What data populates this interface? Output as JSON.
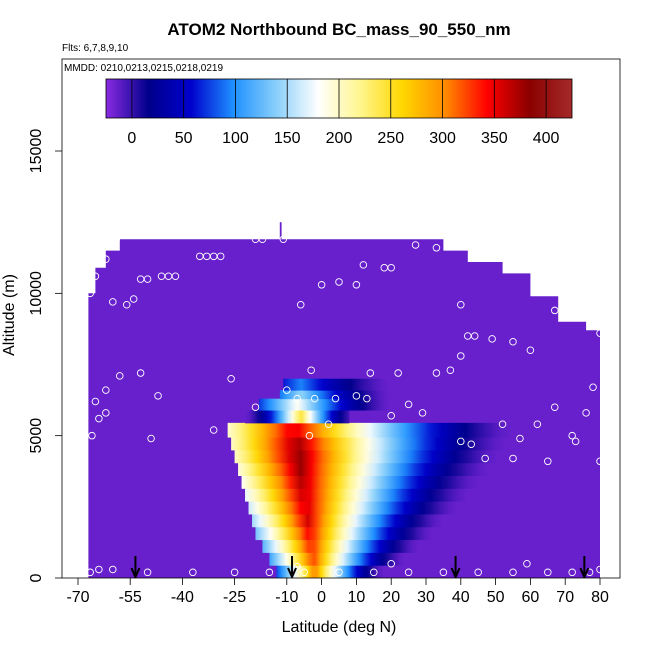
{
  "chart_data": {
    "type": "heatmap",
    "title": "ATOM2 Northbound BC_mass_90_550_nm",
    "notes": [
      "Flts: 6,7,8,9,10",
      "MMDD: 0210,0213,0215,0218,0219"
    ],
    "xlabel": "Latitude (deg N)",
    "ylabel": "Altitude (m)",
    "xlim": [
      -70,
      85
    ],
    "ylim": [
      0,
      17500
    ],
    "x_ticks": [
      -70,
      -55,
      -40,
      -25,
      -10,
      0,
      10,
      20,
      30,
      40,
      50,
      60,
      70,
      80
    ],
    "y_ticks": [
      0,
      5000,
      10000,
      15000
    ],
    "colorbar": {
      "ticks": [
        0,
        50,
        100,
        150,
        200,
        250,
        300,
        350,
        400
      ],
      "range": [
        -25,
        425
      ],
      "colors": [
        "#8a2be2",
        "#00008b",
        "#0000cd",
        "#1e90ff",
        "#87cefa",
        "#ffffff",
        "#fff68f",
        "#ffd700",
        "#ff8c00",
        "#ff0000",
        "#8b0000",
        "#a52a2a"
      ]
    },
    "grid": false,
    "legend": "top",
    "field": {
      "background_value": -15,
      "domain": [
        {
          "x": -67,
          "y": 0
        },
        {
          "x": -67,
          "y": 10000
        },
        {
          "x": -65,
          "y": 10000
        },
        {
          "x": -65,
          "y": 10900
        },
        {
          "x": -62,
          "y": 10900
        },
        {
          "x": -62,
          "y": 11500
        },
        {
          "x": -58,
          "y": 11500
        },
        {
          "x": -58,
          "y": 11900
        },
        {
          "x": 35,
          "y": 11900
        },
        {
          "x": 35,
          "y": 11500
        },
        {
          "x": 42,
          "y": 11500
        },
        {
          "x": 42,
          "y": 11100
        },
        {
          "x": 52,
          "y": 11100
        },
        {
          "x": 52,
          "y": 10700
        },
        {
          "x": 60,
          "y": 10700
        },
        {
          "x": 60,
          "y": 9900
        },
        {
          "x": 68,
          "y": 9900
        },
        {
          "x": 68,
          "y": 9000
        },
        {
          "x": 76,
          "y": 9000
        },
        {
          "x": 76,
          "y": 8700
        },
        {
          "x": 80,
          "y": 8700
        },
        {
          "x": 80,
          "y": 0
        }
      ],
      "top_bump": [
        {
          "x": -12,
          "y": 11900
        },
        {
          "x": -12,
          "y": 12500
        },
        {
          "x": -11.5,
          "y": 12500
        },
        {
          "x": -11.5,
          "y": 11900
        }
      ],
      "plume_layers": [
        {
          "y0": 0,
          "y1": 450,
          "x0": -13,
          "x1": 18,
          "peak": 310,
          "center": -2
        },
        {
          "y0": 450,
          "y1": 900,
          "x0": -15,
          "x1": 24,
          "peak": 330,
          "center": -2.5
        },
        {
          "y0": 900,
          "y1": 1350,
          "x0": -17,
          "x1": 28,
          "peak": 340,
          "center": -3
        },
        {
          "y0": 1350,
          "y1": 1800,
          "x0": -19,
          "x1": 32,
          "peak": 350,
          "center": -3.5
        },
        {
          "y0": 1800,
          "y1": 2250,
          "x0": -20,
          "x1": 35,
          "peak": 360,
          "center": -4
        },
        {
          "y0": 2250,
          "y1": 2700,
          "x0": -21,
          "x1": 39,
          "peak": 365,
          "center": -4.5
        },
        {
          "y0": 2700,
          "y1": 3150,
          "x0": -22,
          "x1": 42,
          "peak": 370,
          "center": -5
        },
        {
          "y0": 3150,
          "y1": 3600,
          "x0": -23,
          "x1": 45,
          "peak": 375,
          "center": -5.5
        },
        {
          "y0": 3600,
          "y1": 4050,
          "x0": -24,
          "x1": 48,
          "peak": 380,
          "center": -6
        },
        {
          "y0": 4050,
          "y1": 4500,
          "x0": -25,
          "x1": 51,
          "peak": 385,
          "center": -6.5
        },
        {
          "y0": 4500,
          "y1": 4950,
          "x0": -26,
          "x1": 53,
          "peak": 380,
          "center": -7
        },
        {
          "y0": 4950,
          "y1": 5450,
          "x0": -27,
          "x1": 55,
          "peak": 360,
          "center": -8
        },
        {
          "y0": 5450,
          "y1": 5900,
          "x0": -22,
          "x1": 8,
          "peak": 250,
          "center": -6
        },
        {
          "y0": 5900,
          "y1": 6300,
          "x0": -18,
          "x1": 20,
          "peak": 185,
          "center": -7
        },
        {
          "y0": 6300,
          "y1": 6600,
          "x0": -12,
          "x1": 20,
          "peak": 145,
          "center": -6
        },
        {
          "y0": 6600,
          "y1": 7000,
          "x0": -11,
          "x1": 20,
          "peak": 95,
          "center": -6
        }
      ]
    },
    "flight_points": [
      {
        "x": -66.5,
        "y": 200
      },
      {
        "x": -64,
        "y": 300
      },
      {
        "x": -60,
        "y": 300
      },
      {
        "x": -50,
        "y": 200
      },
      {
        "x": -37,
        "y": 200
      },
      {
        "x": -25,
        "y": 200
      },
      {
        "x": -15,
        "y": 200
      },
      {
        "x": -5,
        "y": 200
      },
      {
        "x": 5,
        "y": 200
      },
      {
        "x": 15,
        "y": 200
      },
      {
        "x": 25,
        "y": 200
      },
      {
        "x": 35,
        "y": 200
      },
      {
        "x": 45,
        "y": 200
      },
      {
        "x": 55,
        "y": 200
      },
      {
        "x": 65,
        "y": 200
      },
      {
        "x": 72,
        "y": 200
      },
      {
        "x": 77,
        "y": 200
      },
      {
        "x": 80,
        "y": 300
      },
      {
        "x": 59,
        "y": 500
      },
      {
        "x": 20,
        "y": 500
      },
      {
        "x": -7,
        "y": 400
      },
      {
        "x": -66,
        "y": 5000
      },
      {
        "x": -64,
        "y": 5600
      },
      {
        "x": -62,
        "y": 5800
      },
      {
        "x": -65,
        "y": 6200
      },
      {
        "x": -62,
        "y": 6600
      },
      {
        "x": -58,
        "y": 7100
      },
      {
        "x": -52,
        "y": 7200
      },
      {
        "x": -47,
        "y": 6400
      },
      {
        "x": -49,
        "y": 4900
      },
      {
        "x": -31,
        "y": 5200
      },
      {
        "x": -26,
        "y": 7000
      },
      {
        "x": -19,
        "y": 6000
      },
      {
        "x": -10,
        "y": 6600
      },
      {
        "x": -7,
        "y": 6300
      },
      {
        "x": -3.5,
        "y": 5000
      },
      {
        "x": -2,
        "y": 6300
      },
      {
        "x": 2,
        "y": 5400
      },
      {
        "x": 4,
        "y": 6300
      },
      {
        "x": 10,
        "y": 6400
      },
      {
        "x": 13,
        "y": 6300
      },
      {
        "x": 20,
        "y": 5700
      },
      {
        "x": 25,
        "y": 6100
      },
      {
        "x": 29,
        "y": 5800
      },
      {
        "x": 40,
        "y": 4800
      },
      {
        "x": 43,
        "y": 4700
      },
      {
        "x": 47,
        "y": 4200
      },
      {
        "x": 52,
        "y": 5400
      },
      {
        "x": 55,
        "y": 4200
      },
      {
        "x": 57,
        "y": 4900
      },
      {
        "x": 62,
        "y": 5400
      },
      {
        "x": 65,
        "y": 4100
      },
      {
        "x": 67,
        "y": 6000
      },
      {
        "x": 72,
        "y": 5000
      },
      {
        "x": 73,
        "y": 4800
      },
      {
        "x": 76,
        "y": 5800
      },
      {
        "x": 80,
        "y": 4100
      },
      {
        "x": -3,
        "y": 7300
      },
      {
        "x": 14,
        "y": 7200
      },
      {
        "x": 22,
        "y": 7200
      },
      {
        "x": 33,
        "y": 7200
      },
      {
        "x": 37,
        "y": 7300
      },
      {
        "x": 40,
        "y": 7800
      },
      {
        "x": 42,
        "y": 8500
      },
      {
        "x": 44,
        "y": 8500
      },
      {
        "x": 49,
        "y": 8400
      },
      {
        "x": 55,
        "y": 8300
      },
      {
        "x": 60,
        "y": 8000
      },
      {
        "x": 74,
        "y": 9400
      },
      {
        "x": 76,
        "y": 9200
      },
      {
        "x": 78,
        "y": 6700
      },
      {
        "x": 80,
        "y": 8600
      },
      {
        "x": 67,
        "y": 9400
      },
      {
        "x": 40,
        "y": 9600
      },
      {
        "x": -60,
        "y": 9700
      },
      {
        "x": -56,
        "y": 9600
      },
      {
        "x": -54,
        "y": 9800
      },
      {
        "x": -52,
        "y": 10500
      },
      {
        "x": -50,
        "y": 10500
      },
      {
        "x": -46,
        "y": 10600
      },
      {
        "x": -44,
        "y": 10600
      },
      {
        "x": -42,
        "y": 10600
      },
      {
        "x": -35,
        "y": 11300
      },
      {
        "x": -33,
        "y": 11300
      },
      {
        "x": -31,
        "y": 11300
      },
      {
        "x": -29,
        "y": 11300
      },
      {
        "x": -19,
        "y": 11900
      },
      {
        "x": -17,
        "y": 11900
      },
      {
        "x": -11,
        "y": 11900
      },
      {
        "x": -6,
        "y": 9600
      },
      {
        "x": 0,
        "y": 10300
      },
      {
        "x": 5,
        "y": 10400
      },
      {
        "x": 10,
        "y": 10300
      },
      {
        "x": 12,
        "y": 11000
      },
      {
        "x": 18,
        "y": 10900
      },
      {
        "x": 20,
        "y": 10900
      },
      {
        "x": 27,
        "y": 11700
      },
      {
        "x": 33,
        "y": 11600
      },
      {
        "x": 39,
        "y": 11700
      },
      {
        "x": -66.5,
        "y": 10000
      },
      {
        "x": -65,
        "y": 10600
      },
      {
        "x": -62,
        "y": 11200
      },
      {
        "x": -59,
        "y": 11900
      }
    ],
    "arrows": [
      -53.5,
      -8.5,
      38.5,
      75.5
    ]
  }
}
